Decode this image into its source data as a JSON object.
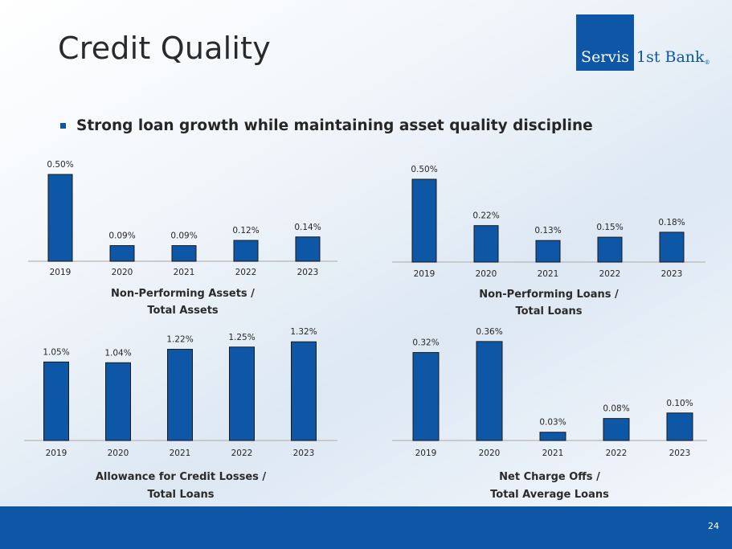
{
  "title": "Credit Quality",
  "logo": {
    "part1": "Servis",
    "part2": "1st Bank",
    "mark": "®"
  },
  "bullet": "Strong loan growth while maintaining asset quality discipline",
  "page_number": "24",
  "colors": {
    "bar": "#0d57a6",
    "bar_stroke": "#1a1a1a",
    "footer": "#0d57a6"
  },
  "chart_data": [
    {
      "type": "bar",
      "title_lines": [
        "Non-Performing Assets /",
        "Total Assets"
      ],
      "categories": [
        "2019",
        "2020",
        "2021",
        "2022",
        "2023"
      ],
      "values": [
        0.5,
        0.09,
        0.09,
        0.12,
        0.14
      ],
      "labels": [
        "0.50%",
        "0.09%",
        "0.09%",
        "0.12%",
        "0.14%"
      ]
    },
    {
      "type": "bar",
      "title_lines": [
        "Non-Performing Loans /",
        "Total Loans"
      ],
      "categories": [
        "2019",
        "2020",
        "2021",
        "2022",
        "2023"
      ],
      "values": [
        0.5,
        0.22,
        0.13,
        0.15,
        0.18
      ],
      "labels": [
        "0.50%",
        "0.22%",
        "0.13%",
        "0.15%",
        "0.18%"
      ]
    },
    {
      "type": "bar",
      "title_lines": [
        "Allowance for Credit Losses /",
        "Total Loans"
      ],
      "categories": [
        "2019",
        "2020",
        "2021",
        "2022",
        "2023"
      ],
      "values": [
        1.05,
        1.04,
        1.22,
        1.25,
        1.32
      ],
      "labels": [
        "1.05%",
        "1.04%",
        "1.22%",
        "1.25%",
        "1.32%"
      ]
    },
    {
      "type": "bar",
      "title_lines": [
        "Net Charge Offs /",
        "Total Average Loans"
      ],
      "categories": [
        "2019",
        "2020",
        "2021",
        "2022",
        "2023"
      ],
      "values": [
        0.32,
        0.36,
        0.03,
        0.08,
        0.1
      ],
      "labels": [
        "0.32%",
        "0.36%",
        "0.03%",
        "0.08%",
        "0.10%"
      ]
    }
  ]
}
